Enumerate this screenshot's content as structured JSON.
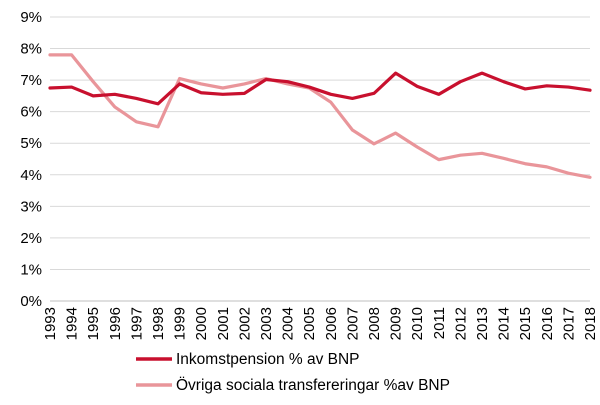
{
  "chart_data": {
    "type": "line",
    "title": "",
    "xlabel": "",
    "ylabel": "",
    "x": [
      "1993",
      "1994",
      "1995",
      "1996",
      "1997",
      "1998",
      "1999",
      "2000",
      "2001",
      "2002",
      "2003",
      "2004",
      "2005",
      "2006",
      "2007",
      "2008",
      "2009",
      "2010",
      "2011",
      "2012",
      "2013",
      "2014",
      "2015",
      "2016",
      "2017",
      "2018"
    ],
    "ylim": [
      0,
      9
    ],
    "yticks": [
      "0%",
      "1%",
      "2%",
      "3%",
      "4%",
      "5%",
      "6%",
      "7%",
      "8%",
      "9%"
    ],
    "grid": true,
    "legend_position": "bottom",
    "series": [
      {
        "name": "Inkomstpension % av BNP",
        "color": "#c8102e",
        "values": [
          6.75,
          6.78,
          6.5,
          6.55,
          6.42,
          6.25,
          6.88,
          6.6,
          6.55,
          6.58,
          7.02,
          6.95,
          6.78,
          6.55,
          6.42,
          6.58,
          7.22,
          6.8,
          6.55,
          6.95,
          7.22,
          6.95,
          6.72,
          6.82,
          6.78,
          6.68
        ]
      },
      {
        "name": "Övriga sociala transfereringar %av BNP",
        "color": "#e9959a",
        "values": [
          7.8,
          7.8,
          6.95,
          6.15,
          5.68,
          5.52,
          7.05,
          6.88,
          6.75,
          6.88,
          7.05,
          6.88,
          6.75,
          6.3,
          5.42,
          4.98,
          5.32,
          4.88,
          4.48,
          4.62,
          4.68,
          4.52,
          4.35,
          4.25,
          4.05,
          3.92
        ]
      }
    ]
  }
}
